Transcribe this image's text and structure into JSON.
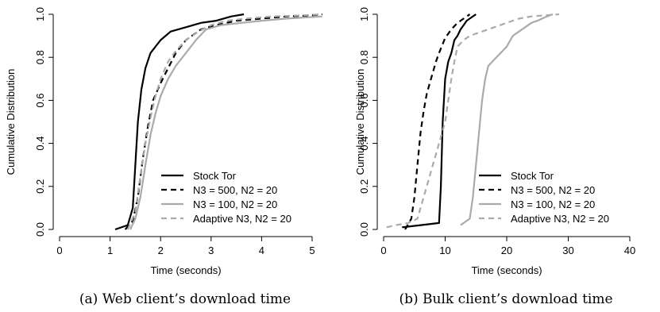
{
  "chart_data": [
    {
      "type": "line",
      "caption": "(a) Web client’s download time",
      "xlabel": "Time (seconds)",
      "ylabel": "Cumulative Distribution",
      "xlim": [
        0,
        5
      ],
      "ylim": [
        0,
        1
      ],
      "xticks": [
        "0",
        "1",
        "2",
        "3",
        "4",
        "5"
      ],
      "yticks": [
        "0.0",
        "0.2",
        "0.4",
        "0.6",
        "0.8",
        "1.0"
      ],
      "legend_position": "bottom-right",
      "series": [
        {
          "name": "Stock Tor",
          "color": "#000000",
          "dash": "solid",
          "x": [
            1.1,
            1.35,
            1.45,
            1.5,
            1.55,
            1.62,
            1.7,
            1.8,
            1.9,
            2.0,
            2.2,
            2.5,
            2.8,
            3.1,
            3.4,
            3.65
          ],
          "y": [
            0.0,
            0.02,
            0.1,
            0.3,
            0.5,
            0.65,
            0.75,
            0.82,
            0.85,
            0.88,
            0.92,
            0.94,
            0.96,
            0.97,
            0.99,
            1.0
          ]
        },
        {
          "name": "N3 = 500, N2 = 20",
          "color": "#000000",
          "dash": "dashed",
          "x": [
            1.3,
            1.45,
            1.55,
            1.65,
            1.75,
            1.85,
            2.0,
            2.15,
            2.3,
            2.5,
            2.8,
            3.1,
            3.5,
            4.0,
            4.5,
            5.0,
            5.2
          ],
          "y": [
            0.0,
            0.04,
            0.15,
            0.33,
            0.48,
            0.6,
            0.68,
            0.75,
            0.82,
            0.88,
            0.93,
            0.95,
            0.97,
            0.98,
            0.99,
            0.995,
            1.0
          ]
        },
        {
          "name": "N3 = 100, N2 = 20",
          "color": "#aaaaaa",
          "dash": "solid",
          "x": [
            1.4,
            1.5,
            1.6,
            1.7,
            1.8,
            1.9,
            2.0,
            2.15,
            2.3,
            2.5,
            2.7,
            2.9,
            3.2,
            3.6,
            4.0,
            4.5,
            5.2
          ],
          "y": [
            0.0,
            0.05,
            0.15,
            0.3,
            0.44,
            0.54,
            0.62,
            0.7,
            0.76,
            0.82,
            0.88,
            0.93,
            0.95,
            0.96,
            0.97,
            0.98,
            0.99
          ]
        },
        {
          "name": "Adaptive N3, N2 = 20",
          "color": "#aaaaaa",
          "dash": "dashed",
          "x": [
            1.35,
            1.5,
            1.6,
            1.7,
            1.8,
            1.9,
            2.0,
            2.15,
            2.3,
            2.5,
            2.75,
            3.0,
            3.3,
            3.7,
            4.2,
            4.8,
            5.2
          ],
          "y": [
            0.0,
            0.08,
            0.25,
            0.4,
            0.52,
            0.62,
            0.7,
            0.78,
            0.83,
            0.88,
            0.92,
            0.95,
            0.97,
            0.98,
            0.99,
            0.995,
            1.0
          ]
        }
      ]
    },
    {
      "type": "line",
      "caption": "(b) Bulk client’s download time",
      "xlabel": "Time (seconds)",
      "ylabel": "Cumulative Distribution",
      "xlim": [
        0,
        40
      ],
      "ylim": [
        0,
        1
      ],
      "xticks": [
        "0",
        "10",
        "20",
        "30",
        "40"
      ],
      "yticks": [
        "0.0",
        "0.2",
        "0.4",
        "0.6",
        "0.8",
        "1.0"
      ],
      "legend_position": "bottom-right",
      "series": [
        {
          "name": "Stock Tor",
          "color": "#000000",
          "dash": "solid",
          "x": [
            3.0,
            6.0,
            9.0,
            9.3,
            9.6,
            10.0,
            10.5,
            11.0,
            11.5,
            12.0,
            12.5,
            13.0,
            13.5,
            14.0,
            15.0
          ],
          "y": [
            0.01,
            0.02,
            0.03,
            0.2,
            0.5,
            0.7,
            0.78,
            0.82,
            0.88,
            0.9,
            0.93,
            0.95,
            0.97,
            0.98,
            1.0
          ]
        },
        {
          "name": "N3 = 500, N2 = 20",
          "color": "#000000",
          "dash": "dashed",
          "x": [
            3.5,
            4.5,
            5.0,
            5.5,
            6.0,
            6.5,
            7.0,
            7.5,
            8.0,
            8.5,
            9.0,
            10.0,
            11.0,
            12.0,
            13.0,
            14.0
          ],
          "y": [
            0.0,
            0.05,
            0.15,
            0.3,
            0.45,
            0.55,
            0.63,
            0.68,
            0.73,
            0.78,
            0.82,
            0.89,
            0.93,
            0.96,
            0.98,
            1.0
          ]
        },
        {
          "name": "N3 = 100, N2 = 20",
          "color": "#aaaaaa",
          "dash": "solid",
          "x": [
            12.5,
            14.0,
            14.5,
            15.0,
            15.5,
            16.0,
            16.5,
            17.0,
            18.0,
            19.0,
            20.0,
            21.0,
            22.0,
            23.0,
            24.0,
            25.0,
            26.5,
            27.5
          ],
          "y": [
            0.02,
            0.05,
            0.15,
            0.3,
            0.45,
            0.6,
            0.7,
            0.76,
            0.79,
            0.82,
            0.85,
            0.9,
            0.92,
            0.94,
            0.96,
            0.97,
            0.99,
            1.0
          ]
        },
        {
          "name": "Adaptive N3, N2 = 20",
          "color": "#aaaaaa",
          "dash": "dashed",
          "x": [
            0.5,
            2.0,
            4.0,
            5.5,
            6.0,
            7.0,
            8.0,
            9.0,
            10.0,
            10.5,
            11.0,
            11.5,
            12.0,
            13.0,
            14.0,
            16.0,
            18.0,
            20.0,
            22.0,
            24.0,
            26.0,
            28.5
          ],
          "y": [
            0.01,
            0.02,
            0.03,
            0.05,
            0.1,
            0.2,
            0.3,
            0.4,
            0.5,
            0.6,
            0.7,
            0.78,
            0.85,
            0.88,
            0.9,
            0.92,
            0.94,
            0.96,
            0.98,
            0.99,
            0.995,
            1.0
          ]
        }
      ]
    }
  ]
}
